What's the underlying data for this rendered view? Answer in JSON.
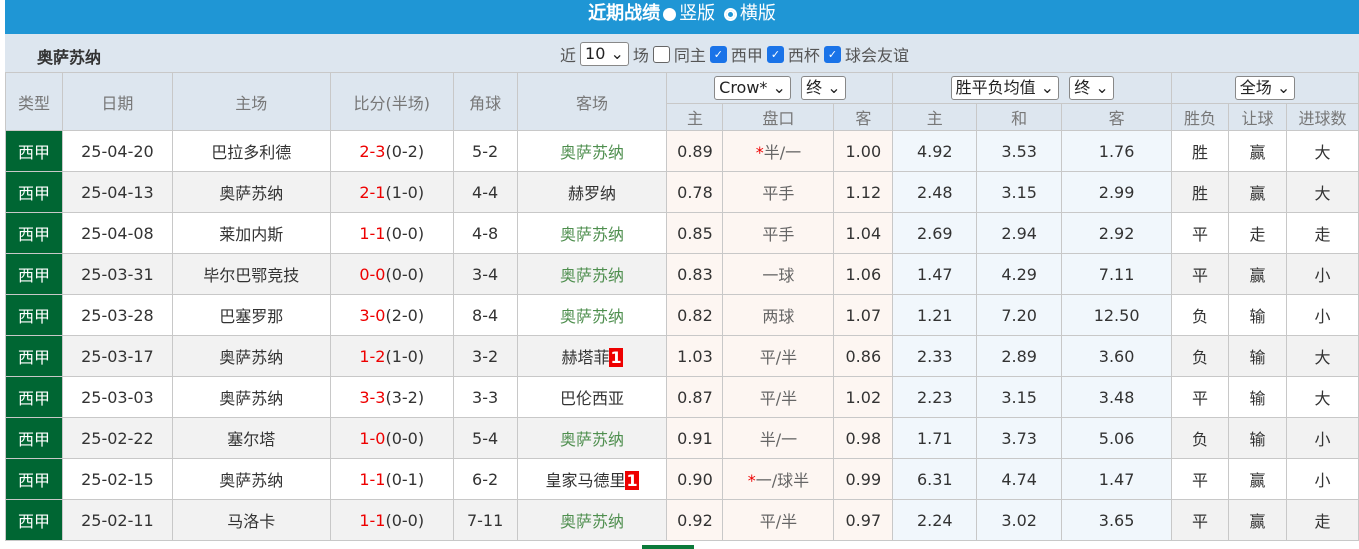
{
  "title": {
    "text": "近期战绩",
    "opt1": "竖版",
    "opt2": "横版"
  },
  "filter": {
    "team": "奥萨苏纳",
    "near": "近",
    "count": "10",
    "games": "场",
    "same_home": "同主",
    "c1": "西甲",
    "c2": "西杯",
    "c3": "球会友谊"
  },
  "header": {
    "type": "类型",
    "date": "日期",
    "home": "主场",
    "score": "比分(半场)",
    "corner": "角球",
    "away": "客场",
    "company": "Crow*",
    "end1": "终",
    "oddtype": "胜平负均值",
    "end2": "终",
    "scope": "全场",
    "sub": [
      "主",
      "盘口",
      "客",
      "主",
      "和",
      "客",
      "胜负",
      "让球",
      "进球数"
    ]
  },
  "colors": {
    "win": "#e02020",
    "draw": "#2233dd",
    "loss": "#3a8a3a",
    "league": "#006633",
    "header": "#1f96d5"
  },
  "rows": [
    {
      "type": "西甲",
      "date": "25-04-20",
      "home": "巴拉多利德",
      "homeTeam": false,
      "ft": "2-3",
      "ht": "(0-2)",
      "corner": "5-2",
      "away": "奥萨苏纳",
      "awayTeam": true,
      "badge": "",
      "a1": "0.89",
      "star": "*",
      "line": "半/一",
      "a2": "1.00",
      "w": "4.92",
      "d": "3.53",
      "l": "1.76",
      "r1": "胜",
      "r2": "赢",
      "r3": "大",
      "c1": "w",
      "c2": "w",
      "c3": "w"
    },
    {
      "type": "西甲",
      "date": "25-04-13",
      "home": "奥萨苏纳",
      "homeTeam": true,
      "ft": "2-1",
      "ht": "(1-0)",
      "corner": "4-4",
      "away": "赫罗纳",
      "awayTeam": false,
      "badge": "",
      "a1": "0.78",
      "star": "",
      "line": "平手",
      "a2": "1.12",
      "w": "2.48",
      "d": "3.15",
      "l": "2.99",
      "r1": "胜",
      "r2": "赢",
      "r3": "大",
      "c1": "w",
      "c2": "w",
      "c3": "w"
    },
    {
      "type": "西甲",
      "date": "25-04-08",
      "home": "莱加内斯",
      "homeTeam": false,
      "ft": "1-1",
      "ht": "(0-0)",
      "corner": "4-8",
      "away": "奥萨苏纳",
      "awayTeam": true,
      "badge": "",
      "a1": "0.85",
      "star": "",
      "line": "平手",
      "a2": "1.04",
      "w": "2.69",
      "d": "2.94",
      "l": "2.92",
      "r1": "平",
      "r2": "走",
      "r3": "走",
      "c1": "d",
      "c2": "d",
      "c3": "d"
    },
    {
      "type": "西甲",
      "date": "25-03-31",
      "home": "毕尔巴鄂竞技",
      "homeTeam": false,
      "ft": "0-0",
      "ht": "(0-0)",
      "corner": "3-4",
      "away": "奥萨苏纳",
      "awayTeam": true,
      "badge": "",
      "a1": "0.83",
      "star": "",
      "line": "一球",
      "a2": "1.06",
      "w": "1.47",
      "d": "4.29",
      "l": "7.11",
      "r1": "平",
      "r2": "赢",
      "r3": "小",
      "c1": "d",
      "c2": "w",
      "c3": "l"
    },
    {
      "type": "西甲",
      "date": "25-03-28",
      "home": "巴塞罗那",
      "homeTeam": false,
      "ft": "3-0",
      "ht": "(2-0)",
      "corner": "8-4",
      "away": "奥萨苏纳",
      "awayTeam": true,
      "badge": "",
      "a1": "0.82",
      "star": "",
      "line": "两球",
      "a2": "1.07",
      "w": "1.21",
      "d": "7.20",
      "l": "12.50",
      "r1": "负",
      "r2": "输",
      "r3": "小",
      "c1": "l",
      "c2": "l",
      "c3": "l"
    },
    {
      "type": "西甲",
      "date": "25-03-17",
      "home": "奥萨苏纳",
      "homeTeam": true,
      "ft": "1-2",
      "ht": "(1-0)",
      "corner": "3-2",
      "away": "赫塔菲",
      "awayTeam": false,
      "badge": "1",
      "a1": "1.03",
      "star": "",
      "line": "平/半",
      "a2": "0.86",
      "w": "2.33",
      "d": "2.89",
      "l": "3.60",
      "r1": "负",
      "r2": "输",
      "r3": "大",
      "c1": "l",
      "c2": "l",
      "c3": "w"
    },
    {
      "type": "西甲",
      "date": "25-03-03",
      "home": "奥萨苏纳",
      "homeTeam": true,
      "ft": "3-3",
      "ht": "(3-2)",
      "corner": "3-3",
      "away": "巴伦西亚",
      "awayTeam": false,
      "badge": "",
      "a1": "0.87",
      "star": "",
      "line": "平/半",
      "a2": "1.02",
      "w": "2.23",
      "d": "3.15",
      "l": "3.48",
      "r1": "平",
      "r2": "输",
      "r3": "大",
      "c1": "d",
      "c2": "l",
      "c3": "w"
    },
    {
      "type": "西甲",
      "date": "25-02-22",
      "home": "塞尔塔",
      "homeTeam": false,
      "ft": "1-0",
      "ht": "(0-0)",
      "corner": "5-4",
      "away": "奥萨苏纳",
      "awayTeam": true,
      "badge": "",
      "a1": "0.91",
      "star": "",
      "line": "半/一",
      "a2": "0.98",
      "w": "1.71",
      "d": "3.73",
      "l": "5.06",
      "r1": "负",
      "r2": "输",
      "r3": "小",
      "c1": "l",
      "c2": "l",
      "c3": "l"
    },
    {
      "type": "西甲",
      "date": "25-02-15",
      "home": "奥萨苏纳",
      "homeTeam": true,
      "ft": "1-1",
      "ht": "(0-1)",
      "corner": "6-2",
      "away": "皇家马德里",
      "awayTeam": false,
      "badge": "1",
      "a1": "0.90",
      "star": "*",
      "line": "一/球半",
      "a2": "0.99",
      "w": "6.31",
      "d": "4.74",
      "l": "1.47",
      "r1": "平",
      "r2": "赢",
      "r3": "小",
      "c1": "d",
      "c2": "w",
      "c3": "l"
    },
    {
      "type": "西甲",
      "date": "25-02-11",
      "home": "马洛卡",
      "homeTeam": false,
      "ft": "1-1",
      "ht": "(0-0)",
      "corner": "7-11",
      "away": "奥萨苏纳",
      "awayTeam": true,
      "badge": "",
      "a1": "0.92",
      "star": "",
      "line": "平/半",
      "a2": "0.97",
      "w": "2.24",
      "d": "3.02",
      "l": "3.65",
      "r1": "平",
      "r2": "赢",
      "r3": "走",
      "c1": "d",
      "c2": "w",
      "c3": "d"
    }
  ]
}
